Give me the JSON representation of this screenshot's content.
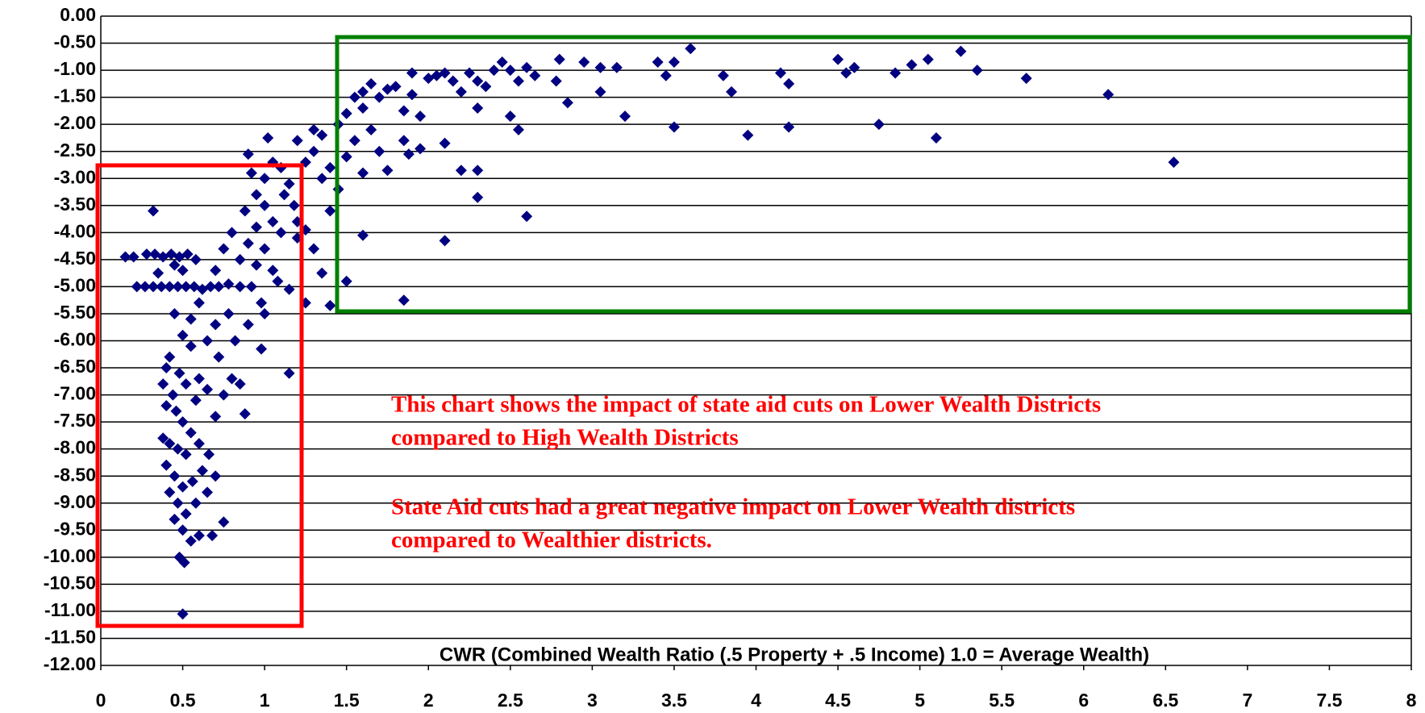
{
  "chart_data": {
    "type": "scatter",
    "x_label": "CWR (Combined Wealth Ratio (.5 Property + .5 Income) 1.0 = Average Wealth)",
    "annotations": [
      [
        "This chart shows the impact of state aid cuts on Lower Wealth Districts",
        "compared to High Wealth Districts"
      ],
      [
        "State Aid cuts had a great negative impact on Lower Wealth districts",
        "compared to Wealthier districts."
      ]
    ],
    "color": "#000080",
    "grid": true,
    "xlim": [
      0,
      8
    ],
    "ylim": [
      -12,
      0
    ],
    "xticks": [
      0,
      0.5,
      1,
      1.5,
      2,
      2.5,
      3,
      3.5,
      4,
      4.5,
      5,
      5.5,
      6,
      6.5,
      7,
      7.5,
      8
    ],
    "yticks": [
      {
        "value": 0,
        "label": "0.00"
      },
      {
        "value": -0.5,
        "label": "-0.50"
      },
      {
        "value": -1,
        "label": "-1.00"
      },
      {
        "value": -1.5,
        "label": "-1.50"
      },
      {
        "value": -2,
        "label": "-2.00"
      },
      {
        "value": -2.5,
        "label": "-2.50"
      },
      {
        "value": -3,
        "label": "-3.00"
      },
      {
        "value": -3.5,
        "label": "-3.50"
      },
      {
        "value": -4,
        "label": "-4.00"
      },
      {
        "value": -4.5,
        "label": "-4.50"
      },
      {
        "value": -5,
        "label": "-5.00"
      },
      {
        "value": -5.5,
        "label": "-5.50"
      },
      {
        "value": -6,
        "label": "-6.00"
      },
      {
        "value": -6.5,
        "label": "-6.50"
      },
      {
        "value": -7,
        "label": "-7.00"
      },
      {
        "value": -7.5,
        "label": "-7.50"
      },
      {
        "value": -8,
        "label": "-8.00"
      },
      {
        "value": -8.5,
        "label": "-8.50"
      },
      {
        "value": -9,
        "label": "-9.00"
      },
      {
        "value": -9.5,
        "label": "-9.50"
      },
      {
        "value": -10,
        "label": "-10.00"
      },
      {
        "value": -10.5,
        "label": "-10.50"
      },
      {
        "value": -11,
        "label": "-11.00"
      },
      {
        "value": -11.5,
        "label": "-11.50"
      },
      {
        "value": -12,
        "label": "-12.00"
      }
    ],
    "x": [
      0.15,
      0.2,
      0.28,
      0.33,
      0.38,
      0.43,
      0.48,
      0.53,
      0.58,
      0.32,
      0.35,
      0.45,
      0.5,
      0.22,
      0.27,
      0.32,
      0.37,
      0.42,
      0.47,
      0.52,
      0.57,
      0.62,
      0.67,
      0.72,
      0.78,
      0.85,
      0.45,
      0.5,
      0.55,
      0.42,
      0.4,
      0.48,
      0.52,
      0.38,
      0.44,
      0.6,
      0.65,
      0.58,
      0.4,
      0.46,
      0.5,
      0.38,
      0.42,
      0.47,
      0.52,
      0.55,
      0.6,
      0.66,
      0.4,
      0.45,
      0.5,
      0.56,
      0.62,
      0.7,
      0.42,
      0.47,
      0.52,
      0.58,
      0.65,
      0.45,
      0.5,
      0.55,
      0.6,
      0.48,
      0.51,
      0.5,
      0.68,
      0.75,
      0.7,
      0.75,
      0.8,
      0.72,
      0.85,
      0.88,
      0.65,
      0.7,
      0.78,
      0.6,
      0.55,
      0.82,
      0.9,
      0.85,
      0.9,
      0.95,
      0.88,
      0.95,
      1.0,
      0.92,
      1.05,
      0.9,
      1.02,
      1.1,
      1.15,
      1.0,
      1.05,
      1.1,
      1.0,
      0.95,
      1.05,
      0.92,
      0.98,
      1.0,
      0.98,
      1.15,
      1.15,
      1.2,
      1.18,
      1.12,
      0.8,
      0.75,
      0.7,
      1.08,
      1.2,
      1.2,
      1.25,
      1.3,
      1.3,
      1.35,
      1.4,
      1.35,
      1.25,
      1.4,
      1.3,
      1.35,
      1.25,
      1.4,
      1.5,
      1.6,
      1.45,
      1.5,
      1.55,
      1.45,
      1.5,
      1.55,
      1.6,
      1.65,
      1.7,
      1.75,
      1.8,
      1.85,
      1.9,
      1.6,
      1.65,
      1.7,
      1.6,
      1.75,
      1.85,
      1.88,
      1.95,
      1.95,
      1.9,
      1.85,
      2.0,
      2.05,
      2.1,
      2.15,
      2.2,
      2.25,
      2.3,
      2.35,
      2.4,
      2.45,
      2.5,
      2.55,
      2.6,
      2.65,
      2.8,
      2.78,
      2.85,
      2.95,
      3.05,
      3.05,
      3.15,
      3.2,
      3.4,
      3.45,
      3.5,
      3.6,
      3.5,
      3.8,
      3.85,
      3.95,
      4.15,
      4.2,
      4.2,
      4.5,
      4.55,
      4.6,
      4.75,
      4.85,
      4.95,
      5.05,
      5.1,
      5.25,
      5.35,
      5.65,
      6.15,
      6.55,
      2.1,
      2.2,
      2.1,
      2.3,
      2.3,
      2.55,
      2.5,
      2.6,
      2.3
    ],
    "values": [
      -4.45,
      -4.45,
      -4.4,
      -4.4,
      -4.45,
      -4.4,
      -4.45,
      -4.4,
      -4.5,
      -3.6,
      -4.75,
      -4.6,
      -4.7,
      -5.0,
      -5.0,
      -5.0,
      -5.0,
      -5.0,
      -5.0,
      -5.0,
      -5.0,
      -5.05,
      -5.0,
      -5.0,
      -4.95,
      -5.0,
      -5.5,
      -5.9,
      -6.1,
      -6.3,
      -6.5,
      -6.6,
      -6.8,
      -6.8,
      -7.0,
      -6.7,
      -6.9,
      -7.1,
      -7.2,
      -7.3,
      -7.5,
      -7.8,
      -7.9,
      -8.0,
      -8.1,
      -7.7,
      -7.9,
      -8.1,
      -8.3,
      -8.5,
      -8.7,
      -8.6,
      -8.4,
      -8.5,
      -8.8,
      -9.0,
      -9.2,
      -9.0,
      -8.8,
      -9.3,
      -9.5,
      -9.7,
      -9.6,
      -10.0,
      -10.1,
      -11.05,
      -9.6,
      -9.35,
      -7.4,
      -7.0,
      -6.7,
      -6.3,
      -6.8,
      -7.35,
      -6.0,
      -5.7,
      -5.5,
      -5.3,
      -5.6,
      -6.0,
      -5.7,
      -4.5,
      -4.2,
      -3.9,
      -3.6,
      -3.3,
      -3.0,
      -2.9,
      -2.7,
      -2.55,
      -2.25,
      -2.8,
      -3.1,
      -3.5,
      -3.8,
      -4.0,
      -4.3,
      -4.6,
      -4.7,
      -5.0,
      -5.3,
      -5.5,
      -6.15,
      -6.6,
      -5.05,
      -4.1,
      -3.5,
      -3.3,
      -4.0,
      -4.3,
      -4.7,
      -4.9,
      -3.8,
      -2.3,
      -2.7,
      -2.5,
      -2.1,
      -2.2,
      -2.8,
      -3.0,
      -3.95,
      -3.6,
      -4.3,
      -4.75,
      -5.3,
      -5.35,
      -4.9,
      -4.05,
      -3.2,
      -2.6,
      -2.3,
      -2.0,
      -1.8,
      -1.5,
      -1.4,
      -1.25,
      -1.5,
      -1.35,
      -1.3,
      -1.75,
      -1.45,
      -1.7,
      -2.1,
      -2.5,
      -2.9,
      -2.85,
      -2.3,
      -2.55,
      -2.45,
      -1.85,
      -1.05,
      -5.25,
      -1.15,
      -1.1,
      -1.05,
      -1.2,
      -1.4,
      -1.05,
      -1.2,
      -1.3,
      -1.0,
      -0.85,
      -1.0,
      -1.2,
      -0.95,
      -1.1,
      -0.8,
      -1.2,
      -1.6,
      -0.85,
      -0.95,
      -1.4,
      -0.95,
      -1.85,
      -0.85,
      -1.1,
      -0.85,
      -0.6,
      -2.05,
      -1.1,
      -1.4,
      -2.2,
      -1.05,
      -1.25,
      -2.05,
      -0.8,
      -1.05,
      -0.95,
      -2.0,
      -1.05,
      -0.9,
      -0.8,
      -2.25,
      -0.65,
      -1.0,
      -1.15,
      -1.45,
      -2.7,
      -2.35,
      -2.85,
      -4.15,
      -2.85,
      -3.35,
      -2.1,
      -1.85,
      -3.7,
      -1.7
    ]
  }
}
